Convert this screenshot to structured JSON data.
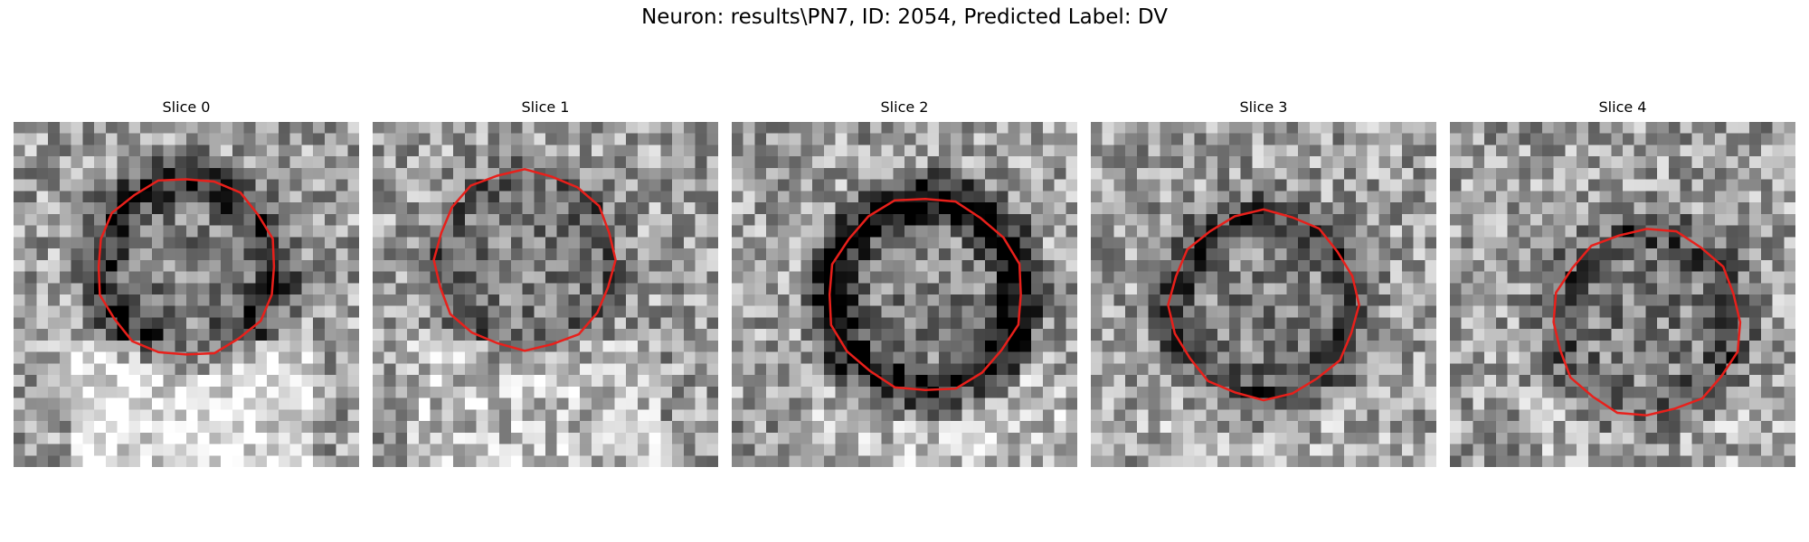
{
  "figure": {
    "title": "Neuron: results\\PN7, ID: 2054, Predicted Label: DV",
    "outline_color": "#e8201b"
  },
  "slices": [
    {
      "title": "Slice 0",
      "seed": 11,
      "center": [
        0.5,
        0.42
      ],
      "radius": 0.26,
      "dark_ring": 0.45,
      "bright_bottom": 0.55
    },
    {
      "title": "Slice 1",
      "seed": 23,
      "center": [
        0.44,
        0.4
      ],
      "radius": 0.26,
      "dark_ring": 0.15,
      "bright_bottom": 0.25
    },
    {
      "title": "Slice 2",
      "seed": 37,
      "center": [
        0.56,
        0.5
      ],
      "radius": 0.28,
      "dark_ring": 0.65,
      "bright_bottom": 0.2
    },
    {
      "title": "Slice 3",
      "seed": 51,
      "center": [
        0.5,
        0.53
      ],
      "radius": 0.27,
      "dark_ring": 0.35,
      "bright_bottom": 0.1
    },
    {
      "title": "Slice 4",
      "seed": 67,
      "center": [
        0.57,
        0.58
      ],
      "radius": 0.27,
      "dark_ring": 0.25,
      "bright_bottom": 0.1
    }
  ]
}
